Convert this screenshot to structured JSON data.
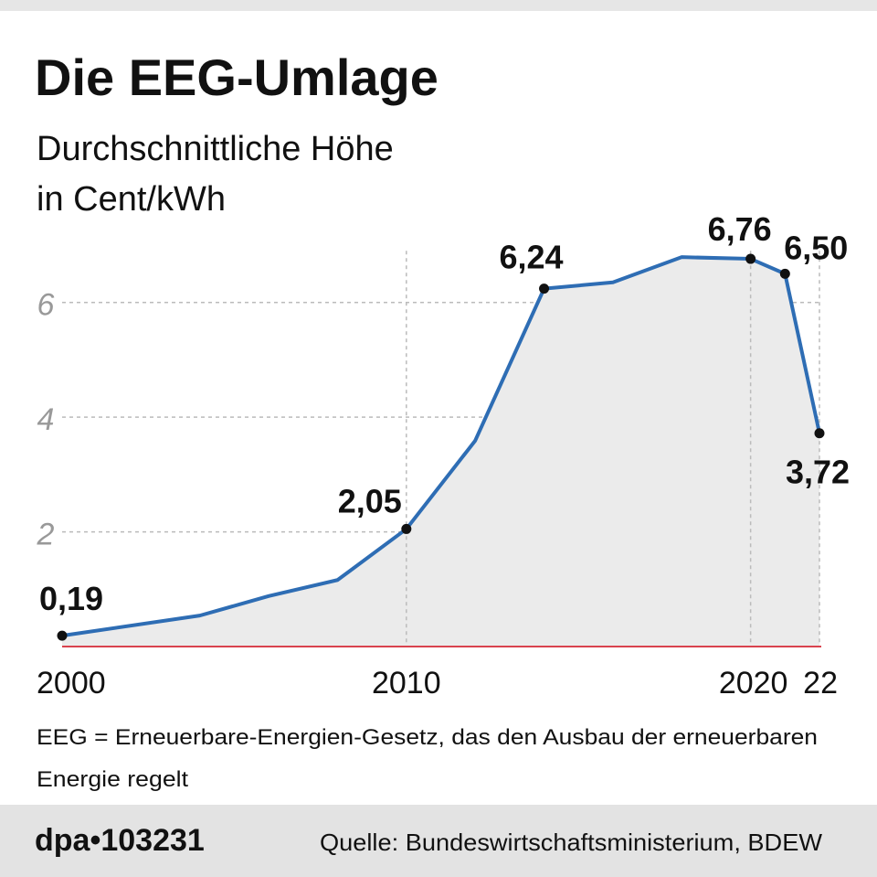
{
  "chart_data": {
    "type": "line",
    "title": "Die EEG-Umlage",
    "subtitle": [
      "Durchschnittliche Höhe",
      "in Cent/kWh"
    ],
    "x": [
      2000,
      2004,
      2006,
      2008,
      2010,
      2012,
      2014,
      2016,
      2018,
      2020,
      2021,
      2022
    ],
    "series": [
      {
        "color": "#2e6db4",
        "values": [
          0.19,
          0.54,
          0.88,
          1.16,
          2.05,
          3.59,
          6.24,
          6.35,
          6.79,
          6.76,
          6.5,
          3.72
        ],
        "value_labels": [
          "0,19",
          null,
          null,
          null,
          "2,05",
          null,
          "6,24",
          null,
          null,
          "6,76",
          "6,50",
          "3,72"
        ]
      }
    ],
    "xlim": [
      2000,
      2022
    ],
    "xticks": [
      2000,
      2010,
      2020,
      {
        "value": 2022,
        "label": "22"
      }
    ],
    "ylim": [
      0,
      7
    ],
    "yticks": [
      2,
      4,
      6
    ],
    "grid": true,
    "note": [
      "EEG = Erneuerbare-Energien-Gesetz, das den Ausbau der erneuerbaren",
      "Energie regelt"
    ],
    "agency": "dpa•103231",
    "source": "Quelle: Bundeswirtschaftsministerium, BDEW"
  }
}
